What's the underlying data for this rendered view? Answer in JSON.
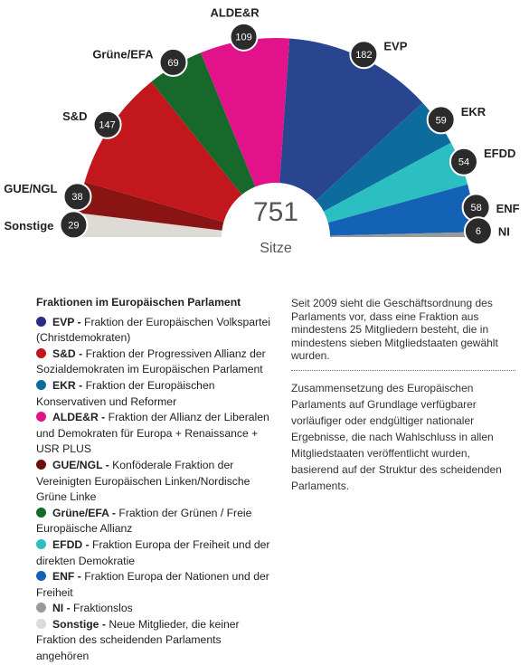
{
  "chart_data": {
    "type": "parliament",
    "total": 751,
    "total_label": "Sitze",
    "series": [
      {
        "name": "Sonstige",
        "color": "#dedbd6",
        "values": [
          29
        ]
      },
      {
        "name": "GUE/NGL",
        "color": "#8a1414",
        "values": [
          38
        ]
      },
      {
        "name": "S&D",
        "color": "#c2171d",
        "values": [
          147
        ]
      },
      {
        "name": "Grüne/EFA",
        "color": "#16692b",
        "values": [
          69
        ]
      },
      {
        "name": "ALDE&R",
        "color": "#e2138a",
        "values": [
          109
        ]
      },
      {
        "name": "EVP",
        "color": "#2a4590",
        "values": [
          182
        ]
      },
      {
        "name": "EKR",
        "color": "#0e6b9e",
        "values": [
          59
        ]
      },
      {
        "name": "EFDD",
        "color": "#2cbfc2",
        "values": [
          54
        ]
      },
      {
        "name": "ENF",
        "color": "#1462b5",
        "values": [
          58
        ]
      },
      {
        "name": "NI",
        "color": "#9a9a9a",
        "values": [
          6
        ]
      }
    ]
  },
  "legend": {
    "title": "Fraktionen im Europäischen Parlament",
    "items": [
      {
        "name": "EVP -",
        "description": "Fraktion der Europäischen Volkspartei (Christdemokraten)",
        "color": "#2a2f86"
      },
      {
        "name": "S&D -",
        "description": "Fraktion der Progressiven Allianz der Sozialdemokraten im Europäischen Parlament",
        "color": "#c2171d"
      },
      {
        "name": "EKR -",
        "description": "Fraktion der Europäischen Konservativen und Reformer",
        "color": "#0e6b9e"
      },
      {
        "name": "ALDE&R -",
        "description": "Fraktion der Allianz der Liberalen und Demokraten für Europa + Renaissance + USR PLUS",
        "color": "#e2138a"
      },
      {
        "name": "GUE/NGL -",
        "description": "Konföderale Fraktion der Vereinigten Europäischen Linken/Nordische Grüne Linke",
        "color": "#6e0f0f"
      },
      {
        "name": "Grüne/EFA -",
        "description": "Fraktion der Grünen / Freie Europäische Allianz",
        "color": "#16692b"
      },
      {
        "name": "EFDD -",
        "description": "Fraktion Europa der Freiheit und der direkten Demokratie",
        "color": "#2cbfc2"
      },
      {
        "name": "ENF -",
        "description": "Fraktion Europa der Nationen und der Freiheit",
        "color": "#1462b5"
      },
      {
        "name": "NI -",
        "description": "Fraktionslos",
        "color": "#9a9a9a"
      },
      {
        "name": "Sonstige -",
        "description": "Neue Mitglieder, die keiner Fraktion des scheidenden Parlaments angehören",
        "color": "#dedbd6"
      }
    ]
  },
  "notes": [
    "Seit 2009 sieht die Geschäftsordnung des Parlaments vor, dass eine Fraktion aus mindestens 25 Mitgliedern besteht, die in mindestens sieben Mitgliedstaaten gewählt wurden.",
    "Zusammensetzung des Europäischen Parlaments auf Grundlage verfügbarer vorläufiger oder endgültiger nationaler Ergebnisse, die nach Wahlschluss in allen Mitgliedstaaten veröffentlicht wurden, basierend auf der Struktur des scheidenden Parlaments."
  ]
}
